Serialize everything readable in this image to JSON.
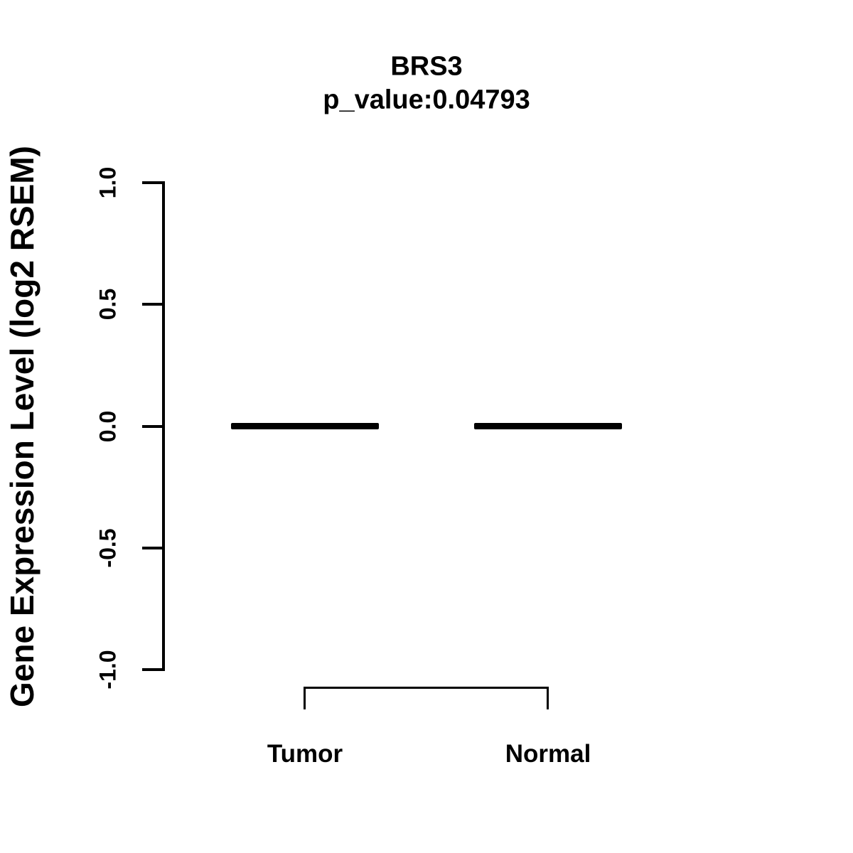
{
  "chart_data": {
    "type": "boxplot",
    "title": "BRS3",
    "subtitle": "p_value:0.04793",
    "gene": "BRS3",
    "p_value": 0.04793,
    "ylabel": "Gene Expression Level (log2 RSEM)",
    "ylim": [
      -1.0,
      1.0
    ],
    "ytick_values": [
      1.0,
      0.5,
      0.0,
      -0.5,
      -1.0
    ],
    "ytick_labels": [
      "1.0",
      "0.5",
      "0.0",
      "-0.5",
      "-1.0"
    ],
    "categories": [
      "Tumor",
      "Normal"
    ],
    "series": [
      {
        "name": "Tumor",
        "median": 0.0,
        "q1": 0.0,
        "q3": 0.0,
        "whisker_low": 0.0,
        "whisker_high": 0.0
      },
      {
        "name": "Normal",
        "median": 0.0,
        "q1": 0.0,
        "q3": 0.0,
        "whisker_low": 0.0,
        "whisker_high": 0.0
      }
    ],
    "grid": false,
    "legend": "none",
    "colors": {
      "foreground": "#000000",
      "background": "#ffffff"
    }
  }
}
